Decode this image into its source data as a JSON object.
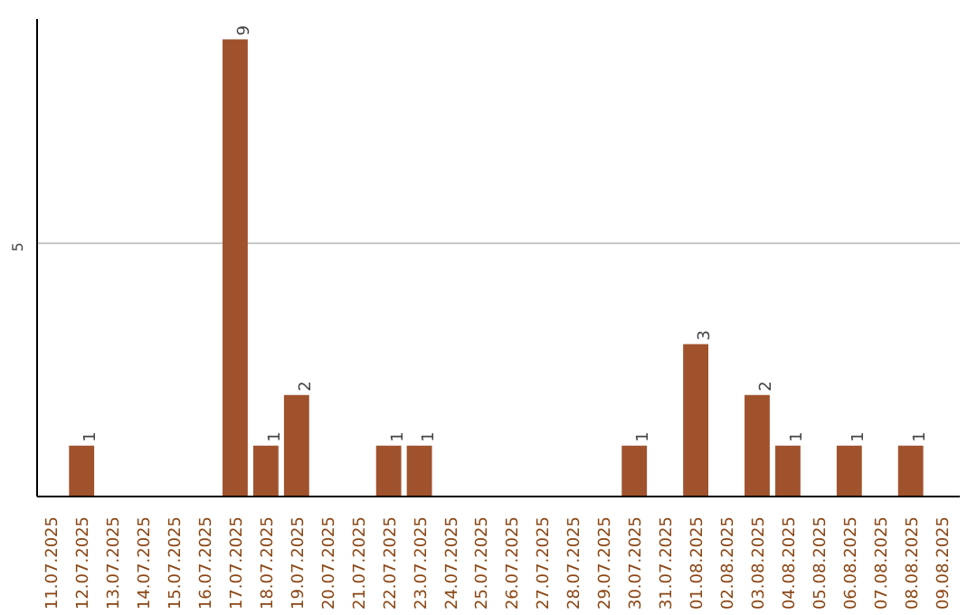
{
  "chart_data": {
    "type": "bar",
    "categories": [
      "11.07.2025",
      "12.07.2025",
      "13.07.2025",
      "14.07.2025",
      "15.07.2025",
      "16.07.2025",
      "17.07.2025",
      "18.07.2025",
      "19.07.2025",
      "20.07.2025",
      "21.07.2025",
      "22.07.2025",
      "23.07.2025",
      "24.07.2025",
      "25.07.2025",
      "26.07.2025",
      "27.07.2025",
      "28.07.2025",
      "29.07.2025",
      "30.07.2025",
      "31.07.2025",
      "01.08.2025",
      "02.08.2025",
      "03.08.2025",
      "04.08.2025",
      "05.08.2025",
      "06.08.2025",
      "07.08.2025",
      "08.08.2025",
      "09.08.2025"
    ],
    "values": [
      0,
      1,
      0,
      0,
      0,
      0,
      9,
      1,
      2,
      0,
      0,
      1,
      1,
      0,
      0,
      0,
      0,
      0,
      0,
      1,
      0,
      3,
      0,
      2,
      1,
      0,
      1,
      0,
      1,
      0
    ],
    "value_labels": [
      null,
      "1",
      null,
      null,
      null,
      null,
      "9",
      "1",
      "2",
      null,
      null,
      "1",
      "1",
      null,
      null,
      null,
      null,
      null,
      null,
      "1",
      null,
      "3",
      null,
      "2",
      "1",
      null,
      "1",
      null,
      "1",
      null
    ],
    "color": "#a0522d",
    "ylim": [
      0,
      9.4
    ],
    "yticks": [
      5
    ],
    "grid": "y"
  }
}
